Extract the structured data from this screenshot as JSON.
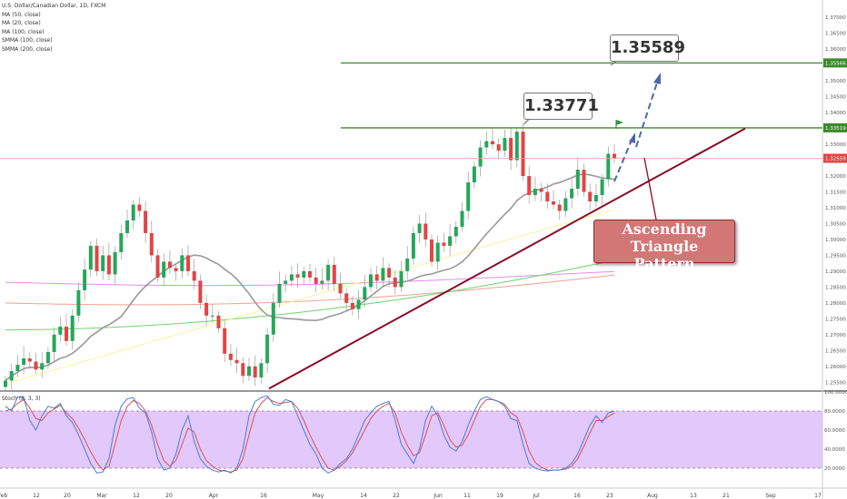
{
  "legend": {
    "title": "U.S. Dollar/Canadian Dollar, 1D, FXCM",
    "lines": [
      "MA (50, close)",
      "MA (20, close)",
      "MA (100, close)",
      "SMMA (100, close)",
      "SMMA (200, close)"
    ]
  },
  "stoch_label": "Stoch (8, 3, 3)",
  "annotations": {
    "top_target": "1.35589",
    "resistance_high": "1.33771",
    "pattern_line1": "Ascending Triangle",
    "pattern_line2": "Pattern"
  },
  "price_badges": {
    "upper": "1.35566",
    "middle": "1.33519",
    "current": "1.32559"
  },
  "colors": {
    "up": "#26a65b",
    "down": "#e04545",
    "resistance": "#3a8a2a",
    "trendline": "#8b0a25",
    "ma20": "#999999",
    "ma50": "#f5f59a",
    "ma100": "#6fd36f",
    "smma100": "#f0a090",
    "smma200": "#e58ee5",
    "stoch_k": "#4a7fd4",
    "stoch_d": "#e05050",
    "stoch_band": "#e3c8fb",
    "callout_box": "#d27676",
    "arrow": "#4e68a8"
  },
  "chart_data": {
    "type": "candlestick",
    "symbol": "U.S. Dollar/Canadian Dollar",
    "timeframe": "1D",
    "ylim": [
      1.2525,
      1.3755
    ],
    "y_ticks": [
      "1.37500",
      "1.37000",
      "1.36500",
      "1.36000",
      "1.35500",
      "1.35000",
      "1.34500",
      "1.34000",
      "1.33500",
      "1.33000",
      "1.32500",
      "1.32000",
      "1.31500",
      "1.31000",
      "1.30500",
      "1.30000",
      "1.29500",
      "1.29000",
      "1.28500",
      "1.28000",
      "1.27500",
      "1.27000",
      "1.26500",
      "1.26000",
      "1.25500"
    ],
    "x_tick_labels": [
      "Feb",
      "12",
      "20",
      "Mar",
      "12",
      "20",
      "Apr",
      "16",
      "May",
      "14",
      "22",
      "Jun",
      "11",
      "19",
      "Jul",
      "16",
      "23",
      "Aug",
      "13",
      "21",
      "Sep",
      "17"
    ],
    "closes": [
      1.2555,
      1.2585,
      1.2605,
      1.2625,
      1.2615,
      1.259,
      1.261,
      1.2645,
      1.27,
      1.2725,
      1.268,
      1.276,
      1.284,
      1.2905,
      1.298,
      1.29,
      1.295,
      1.289,
      1.296,
      1.302,
      1.306,
      1.311,
      1.309,
      1.302,
      1.295,
      1.288,
      1.293,
      1.291,
      1.29,
      1.295,
      1.29,
      1.287,
      1.28,
      1.276,
      1.276,
      1.272,
      1.264,
      1.262,
      1.261,
      1.257,
      1.26,
      1.2565,
      1.261,
      1.27,
      1.28,
      1.286,
      1.287,
      1.289,
      1.288,
      1.29,
      1.288,
      1.286,
      1.287,
      1.292,
      1.286,
      1.283,
      1.28,
      1.278,
      1.281,
      1.285,
      1.289,
      1.287,
      1.291,
      1.288,
      1.285,
      1.29,
      1.294,
      1.302,
      1.305,
      1.3,
      1.293,
      1.299,
      1.298,
      1.301,
      1.304,
      1.309,
      1.318,
      1.323,
      1.329,
      1.331,
      1.33,
      1.328,
      1.332,
      1.325,
      1.334,
      1.32,
      1.314,
      1.316,
      1.315,
      1.312,
      1.311,
      1.309,
      1.313,
      1.316,
      1.322,
      1.315,
      1.312,
      1.314,
      1.319,
      1.327,
      1.3256
    ],
    "stochastic": {
      "k": [
        85,
        80,
        95,
        94,
        70,
        60,
        75,
        85,
        83,
        88,
        75,
        68,
        55,
        40,
        25,
        15,
        16,
        30,
        65,
        85,
        93,
        94,
        83,
        78,
        58,
        30,
        18,
        20,
        35,
        60,
        75,
        48,
        30,
        22,
        18,
        16,
        18,
        15,
        20,
        40,
        75,
        90,
        94,
        96,
        87,
        86,
        92,
        90,
        75,
        60,
        45,
        35,
        20,
        15,
        18,
        25,
        30,
        40,
        55,
        70,
        78,
        85,
        88,
        90,
        70,
        45,
        35,
        25,
        40,
        70,
        85,
        75,
        55,
        42,
        38,
        48,
        65,
        80,
        92,
        95,
        92,
        90,
        85,
        72,
        70,
        45,
        25,
        20,
        18,
        17,
        18,
        18,
        20,
        25,
        35,
        50,
        65,
        75,
        68,
        78,
        80
      ],
      "d": [
        80,
        82,
        88,
        92,
        83,
        72,
        70,
        78,
        82,
        86,
        78,
        72,
        62,
        50,
        37,
        26,
        18,
        22,
        45,
        70,
        85,
        91,
        88,
        80,
        65,
        45,
        28,
        22,
        28,
        45,
        62,
        58,
        40,
        28,
        22,
        18,
        17,
        16,
        18,
        30,
        55,
        78,
        88,
        94,
        90,
        88,
        89,
        90,
        83,
        70,
        55,
        42,
        30,
        20,
        18,
        22,
        28,
        36,
        48,
        60,
        72,
        80,
        85,
        88,
        78,
        58,
        44,
        33,
        36,
        55,
        75,
        78,
        65,
        50,
        42,
        44,
        55,
        70,
        85,
        92,
        92,
        90,
        87,
        78,
        74,
        58,
        38,
        26,
        21,
        18,
        18,
        18,
        19,
        22,
        30,
        43,
        57,
        70,
        70,
        74,
        78
      ]
    },
    "overlays": [
      "MA (50, close)",
      "MA (20, close)",
      "MA (100, close)",
      "SMMA (100, close)",
      "SMMA (200, close)"
    ]
  }
}
